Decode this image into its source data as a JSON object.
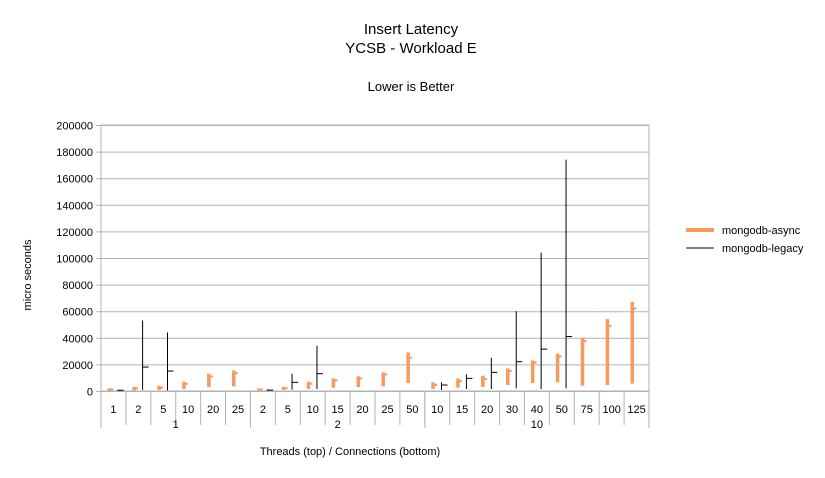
{
  "chart_data": {
    "type": "stock-range",
    "title": "Insert Latency",
    "subtitle": "YCSB - Workload E",
    "note": "Lower is Better",
    "ylabel": "micro seconds",
    "xlabel": "Threads (top)  / Connections (bottom)",
    "ylim": [
      0,
      200000
    ],
    "yticks": [
      0,
      20000,
      40000,
      60000,
      80000,
      100000,
      120000,
      140000,
      160000,
      180000,
      200000
    ],
    "grid": true,
    "legend_position": "right",
    "groups": [
      {
        "label": "1",
        "categories": [
          "1",
          "2",
          "5",
          "10",
          "20",
          "25"
        ]
      },
      {
        "label": "2",
        "categories": [
          "2",
          "5",
          "10",
          "15",
          "20",
          "25",
          "50"
        ]
      },
      {
        "label": "10",
        "categories": [
          "10",
          "15",
          "20",
          "30",
          "40",
          "50",
          "75",
          "100",
          "125"
        ]
      }
    ],
    "series": [
      {
        "name": "mongodb-async",
        "color": "#f79a5e",
        "low": [
          300,
          500,
          800,
          1500,
          3000,
          3500,
          500,
          800,
          1500,
          2500,
          3000,
          3500,
          6000,
          1500,
          2500,
          3000,
          4500,
          6000,
          6500,
          4000,
          4500,
          5500
        ],
        "high": [
          2000,
          3000,
          4000,
          7000,
          13000,
          15500,
          1800,
          3000,
          7000,
          9500,
          11000,
          14000,
          29000,
          6500,
          9500,
          11500,
          17000,
          23000,
          28000,
          40000,
          54000,
          67000
        ],
        "mid": [
          1200,
          2000,
          2500,
          5500,
          11000,
          13500,
          1200,
          2000,
          5500,
          8000,
          9500,
          12500,
          25000,
          4500,
          7500,
          9000,
          15000,
          21500,
          26000,
          37500,
          49000,
          62000
        ]
      },
      {
        "name": "mongodb-legacy",
        "color": "#000000",
        "low": [
          300,
          800,
          500,
          null,
          null,
          null,
          200,
          1000,
          1500,
          null,
          null,
          null,
          null,
          800,
          1500,
          1500,
          2000,
          1500,
          2000,
          null,
          null,
          null
        ],
        "high": [
          900,
          53000,
          44000,
          null,
          null,
          null,
          1200,
          13000,
          34000,
          null,
          null,
          null,
          null,
          6500,
          12500,
          25000,
          60000,
          104000,
          174000,
          null,
          null,
          null
        ],
        "mid": [
          600,
          18000,
          15000,
          null,
          null,
          null,
          700,
          6500,
          13000,
          null,
          null,
          null,
          null,
          4500,
          9500,
          14000,
          22000,
          31500,
          41000,
          null,
          null,
          null
        ]
      }
    ]
  }
}
